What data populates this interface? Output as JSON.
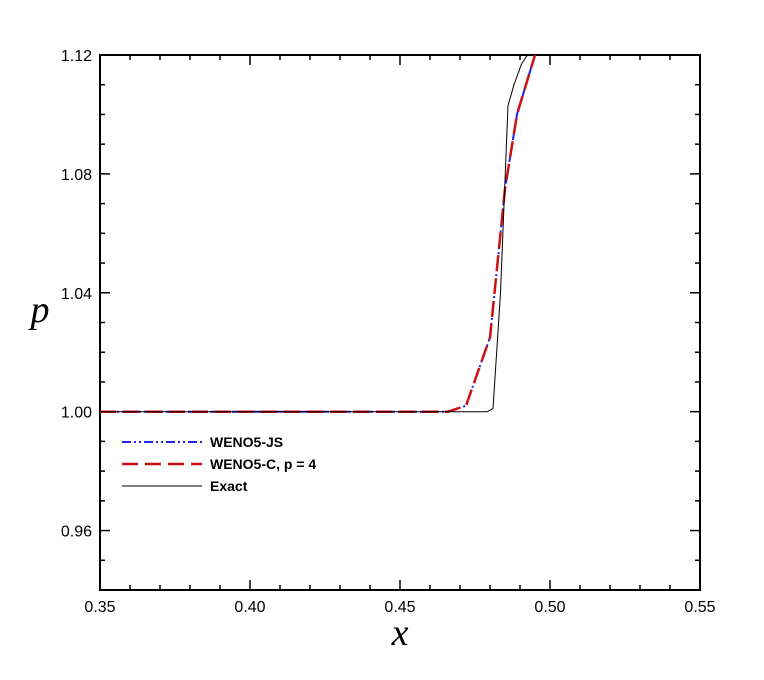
{
  "chart_data": {
    "type": "line",
    "title": "",
    "xlabel": "x",
    "ylabel": "p",
    "xlim": [
      0.35,
      0.55
    ],
    "ylim": [
      0.94,
      1.12
    ],
    "xticks": [
      "0.35",
      "0.40",
      "0.45",
      "0.50",
      "0.55"
    ],
    "yticks": [
      "0.96",
      "1.00",
      "1.04",
      "1.08",
      "1.12"
    ],
    "grid": false,
    "legend_position": "lower-left",
    "series": [
      {
        "name": "WENO5-JS",
        "color": "#2222ee",
        "style": "dash-dot-dot",
        "x": [
          0.35,
          0.36,
          0.37,
          0.38,
          0.39,
          0.4,
          0.41,
          0.42,
          0.43,
          0.44,
          0.45,
          0.466,
          0.472,
          0.48,
          0.485,
          0.489,
          0.495
        ],
        "y": [
          1.0,
          1.0,
          1.0,
          1.0,
          1.0,
          1.0,
          1.0,
          1.0,
          1.0,
          1.0,
          1.0,
          1.0,
          1.002,
          1.025,
          1.075,
          1.1,
          1.12
        ]
      },
      {
        "name": "WENO5-C, p = 4",
        "color": "#cc1111",
        "style": "dashed",
        "x": [
          0.35,
          0.36,
          0.37,
          0.38,
          0.39,
          0.4,
          0.41,
          0.42,
          0.43,
          0.44,
          0.45,
          0.466,
          0.472,
          0.48,
          0.485,
          0.489,
          0.495
        ],
        "y": [
          1.0,
          1.0,
          1.0,
          1.0,
          1.0,
          1.0,
          1.0,
          1.0,
          1.0,
          1.0,
          1.0,
          1.0,
          1.002,
          1.025,
          1.075,
          1.1,
          1.12
        ]
      },
      {
        "name": "Exact",
        "color": "#000000",
        "style": "solid",
        "x": [
          0.35,
          0.45,
          0.479,
          0.481,
          0.4835,
          0.486,
          0.488,
          0.4905,
          0.4925
        ],
        "y": [
          1.0,
          1.0,
          1.0,
          1.001,
          1.04,
          1.103,
          1.11,
          1.117,
          1.12
        ]
      }
    ]
  }
}
